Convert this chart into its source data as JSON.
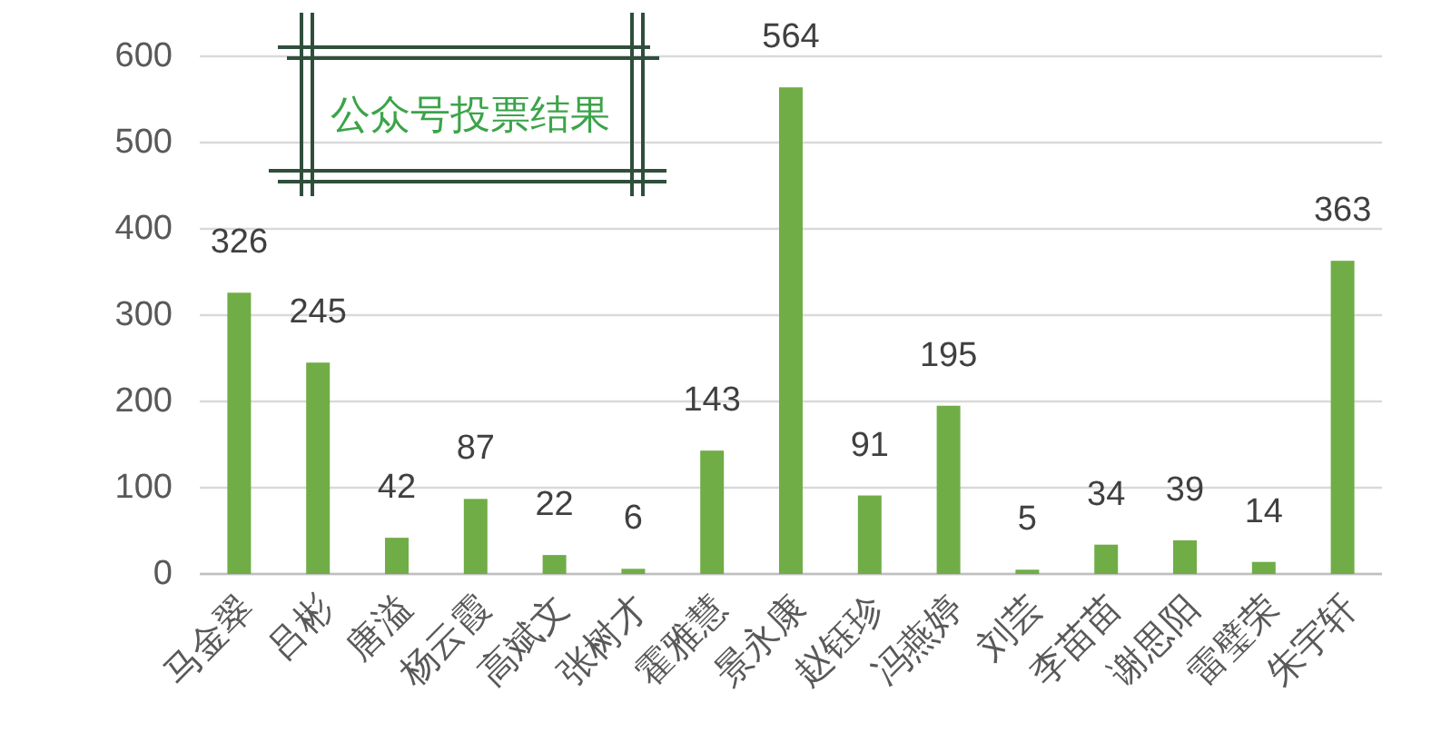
{
  "chart_data": {
    "type": "bar",
    "title": "公众号投票结果",
    "categories": [
      "马金翠",
      "吕彬",
      "唐溢",
      "杨云霞",
      "高斌文",
      "张树才",
      "霍雅慧",
      "景永康",
      "赵钰珍",
      "冯燕婷",
      "刘芸",
      "李苗苗",
      "谢思阳",
      "雷璧荣",
      "朱宇轩"
    ],
    "values": [
      326,
      245,
      42,
      87,
      22,
      6,
      143,
      564,
      91,
      195,
      5,
      34,
      39,
      14,
      363
    ],
    "color": "#70ad47",
    "ylim": [
      0,
      600
    ],
    "yticks": [
      0,
      100,
      200,
      300,
      400,
      500,
      600
    ],
    "grid": "y",
    "data_labels": true
  }
}
